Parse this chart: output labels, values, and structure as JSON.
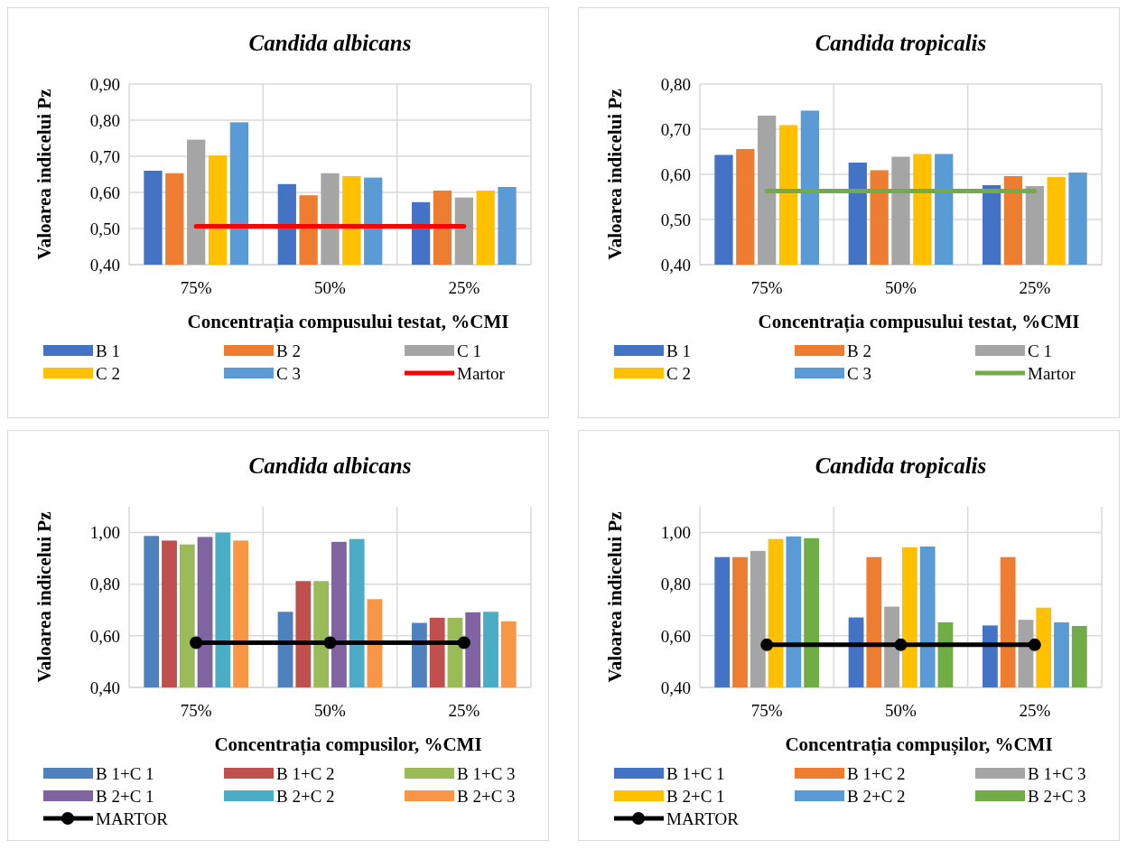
{
  "chart_data": [
    {
      "type": "bar",
      "title": "Candida albicans",
      "xlabel": "Concentrația compusului testat, %CMI",
      "ylabel": "Valoarea indicelui Pz",
      "categories": [
        "75%",
        "50%",
        "25%"
      ],
      "series": [
        {
          "name": "B 1",
          "color": "#4472c4",
          "values": [
            0.66,
            0.623,
            0.573
          ]
        },
        {
          "name": "B 2",
          "color": "#ed7d31",
          "values": [
            0.653,
            0.592,
            0.605
          ]
        },
        {
          "name": "C 1",
          "color": "#a5a5a5",
          "values": [
            0.746,
            0.653,
            0.586
          ]
        },
        {
          "name": "C 2",
          "color": "#ffc000",
          "values": [
            0.702,
            0.645,
            0.605
          ]
        },
        {
          "name": "C 3",
          "color": "#5b9bd5",
          "values": [
            0.794,
            0.641,
            0.615
          ]
        },
        {
          "name": "Martor",
          "color": "#ff0000",
          "type": "line",
          "values": [
            0.506,
            0.506,
            0.506
          ]
        }
      ],
      "ylim": [
        0.4,
        0.9
      ],
      "yticks": [
        {
          "value": 0.4,
          "label": "0,40"
        },
        {
          "value": 0.5,
          "label": "0,50"
        },
        {
          "value": 0.6,
          "label": "0,60"
        },
        {
          "value": 0.7,
          "label": "0,70"
        },
        {
          "value": 0.8,
          "label": "0,80"
        },
        {
          "value": 0.9,
          "label": "0,90"
        }
      ],
      "grid": true,
      "legend": "bottom",
      "marker": "none"
    },
    {
      "type": "bar",
      "title": "Candida tropicalis",
      "xlabel": "Concentrația compusului testat, %CMI",
      "ylabel": "Valoarea indicelui Pz",
      "categories": [
        "75%",
        "50%",
        "25%"
      ],
      "series": [
        {
          "name": "B 1",
          "color": "#4472c4",
          "values": [
            0.643,
            0.626,
            0.576
          ]
        },
        {
          "name": "B 2",
          "color": "#ed7d31",
          "values": [
            0.656,
            0.609,
            0.596
          ]
        },
        {
          "name": "C 1",
          "color": "#a5a5a5",
          "values": [
            0.73,
            0.639,
            0.574
          ]
        },
        {
          "name": "C 2",
          "color": "#ffc000",
          "values": [
            0.709,
            0.645,
            0.594
          ]
        },
        {
          "name": "C 3",
          "color": "#5b9bd5",
          "values": [
            0.741,
            0.645,
            0.604
          ]
        },
        {
          "name": "Martor",
          "color": "#70ad47",
          "type": "line",
          "values": [
            0.563,
            0.563,
            0.563
          ]
        }
      ],
      "ylim": [
        0.4,
        0.8
      ],
      "yticks": [
        {
          "value": 0.4,
          "label": "0,40"
        },
        {
          "value": 0.5,
          "label": "0,50"
        },
        {
          "value": 0.6,
          "label": "0,60"
        },
        {
          "value": 0.7,
          "label": "0,70"
        },
        {
          "value": 0.8,
          "label": "0,80"
        }
      ],
      "grid": true,
      "legend": "bottom",
      "marker": "none"
    },
    {
      "type": "bar",
      "title": "Candida albicans",
      "xlabel": "Concentrația compusilor, %CMI",
      "ylabel": "Valoarea indicelui Pz",
      "categories": [
        "75%",
        "50%",
        "25%"
      ],
      "series": [
        {
          "name": "B 1+C 1",
          "color": "#4f81bd",
          "values": [
            0.987,
            0.693,
            0.65
          ]
        },
        {
          "name": "B 1+C 2",
          "color": "#c0504d",
          "values": [
            0.969,
            0.812,
            0.67
          ]
        },
        {
          "name": "B 1+C 3",
          "color": "#9bbb59",
          "values": [
            0.954,
            0.812,
            0.67
          ]
        },
        {
          "name": "B 2+C 1",
          "color": "#8064a2",
          "values": [
            0.983,
            0.964,
            0.691
          ]
        },
        {
          "name": "B 2+C 2",
          "color": "#4bacc6",
          "values": [
            1.0,
            0.975,
            0.693
          ]
        },
        {
          "name": "B 2+C 3",
          "color": "#f79646",
          "values": [
            0.969,
            0.742,
            0.656
          ]
        },
        {
          "name": "MARTOR",
          "color": "#000000",
          "type": "line",
          "values": [
            0.573,
            0.573,
            0.573
          ]
        }
      ],
      "ylim": [
        0.4,
        1.1
      ],
      "yticks": [
        {
          "value": 0.4,
          "label": "0,40"
        },
        {
          "value": 0.6,
          "label": "0,60"
        },
        {
          "value": 0.8,
          "label": "0,80"
        },
        {
          "value": 1.0,
          "label": "1,00"
        }
      ],
      "grid": true,
      "legend": "bottom",
      "marker": "circle"
    },
    {
      "type": "bar",
      "title": "Candida tropicalis",
      "xlabel": "Concentrația compușilor, %CMI",
      "ylabel": "Valoarea indicelui Pz",
      "categories": [
        "75%",
        "50%",
        "25%"
      ],
      "series": [
        {
          "name": "B 1+C 1",
          "color": "#4472c4",
          "values": [
            0.905,
            0.671,
            0.64
          ]
        },
        {
          "name": "B 1+C 2",
          "color": "#ed7d31",
          "values": [
            0.905,
            0.905,
            0.905
          ]
        },
        {
          "name": "B 1+C 3",
          "color": "#a5a5a5",
          "values": [
            0.929,
            0.713,
            0.662
          ]
        },
        {
          "name": "B 2+C 1",
          "color": "#ffc000",
          "values": [
            0.975,
            0.943,
            0.709
          ]
        },
        {
          "name": "B 2+C 2",
          "color": "#5b9bd5",
          "values": [
            0.985,
            0.946,
            0.652
          ]
        },
        {
          "name": "B 2+C 3",
          "color": "#70ad47",
          "values": [
            0.978,
            0.652,
            0.638
          ]
        },
        {
          "name": "MARTOR",
          "color": "#000000",
          "type": "line",
          "values": [
            0.565,
            0.565,
            0.565
          ]
        }
      ],
      "ylim": [
        0.4,
        1.1
      ],
      "yticks": [
        {
          "value": 0.4,
          "label": "0,40"
        },
        {
          "value": 0.6,
          "label": "0,60"
        },
        {
          "value": 0.8,
          "label": "0,80"
        },
        {
          "value": 1.0,
          "label": "1,00"
        }
      ],
      "grid": true,
      "legend": "bottom",
      "marker": "circle"
    }
  ]
}
